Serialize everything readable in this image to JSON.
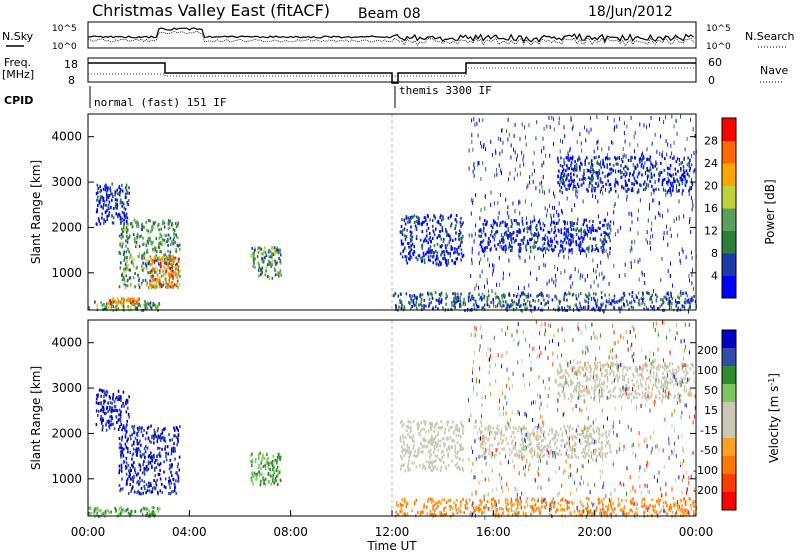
{
  "header": {
    "title": "Christmas Valley East (fitACF)",
    "beam": "Beam 08",
    "date": "18/Jun/2012"
  },
  "noise_panel": {
    "left_label": "N.Sky",
    "right_label": "N.Search",
    "ticks_left": [
      "10^5",
      "10^0"
    ],
    "ticks_right": [
      "10^5",
      "10^0"
    ]
  },
  "freq_panel": {
    "left_label_1": "Freq.",
    "left_label_2": "[MHz]",
    "right_label": "Nave",
    "ticks_left": [
      "18",
      "8"
    ],
    "ticks_right": [
      "60",
      "0"
    ]
  },
  "cpid_panel": {
    "label": "CPID",
    "mode_1": "normal (fast) 151 IF",
    "mode_2": "themis 3300 IF"
  },
  "colors": {
    "power_scale": [
      "#0000ff",
      "#1c3cae",
      "#2e7d3a",
      "#5aa05a",
      "#bfd23a",
      "#ffa500",
      "#ff6a00",
      "#ff0000"
    ],
    "velocity_scale": [
      "#0000c8",
      "#2e4ca8",
      "#2e8b2e",
      "#7cc860",
      "#c8c8b4",
      "#c8c8b4",
      "#ffa028",
      "#ff7800",
      "#ff3c00",
      "#ff0000"
    ]
  },
  "chart_data": [
    {
      "type": "heatmap",
      "name": "power",
      "ylabel": "Slant Range [km]",
      "yticks": [
        "1000",
        "2000",
        "3000",
        "4000"
      ],
      "ylim": [
        180,
        4500
      ],
      "colorbar_label": "Power [dB]",
      "colorbar_ticks": [
        "4",
        "8",
        "12",
        "16",
        "20",
        "24",
        "28"
      ],
      "xlim_hours": [
        0,
        24
      ],
      "echo_regions": [
        {
          "t": [
            0.0,
            2.8
          ],
          "r": [
            200,
            400
          ],
          "level": 3
        },
        {
          "t": [
            0.8,
            2.0
          ],
          "r": [
            350,
            480
          ],
          "level": 6
        },
        {
          "t": [
            0.3,
            1.6
          ],
          "r": [
            2100,
            3000
          ],
          "level": 1
        },
        {
          "t": [
            1.2,
            3.6
          ],
          "r": [
            700,
            2200
          ],
          "level": 3
        },
        {
          "t": [
            2.4,
            3.6
          ],
          "r": [
            700,
            1400
          ],
          "level": 6
        },
        {
          "t": [
            6.4,
            7.6
          ],
          "r": [
            900,
            1600
          ],
          "level": 3
        },
        {
          "t": [
            12.3,
            14.8
          ],
          "r": [
            1200,
            2300
          ],
          "level": 1
        },
        {
          "t": [
            15.4,
            20.6
          ],
          "r": [
            1500,
            2200
          ],
          "level": 1
        },
        {
          "t": [
            18.5,
            23.8
          ],
          "r": [
            2800,
            3600
          ],
          "level": 1
        },
        {
          "t": [
            12.0,
            24.0
          ],
          "r": [
            200,
            600
          ],
          "level": 2
        }
      ]
    },
    {
      "type": "heatmap",
      "name": "velocity",
      "ylabel": "Slant Range [km]",
      "yticks": [
        "1000",
        "2000",
        "3000",
        "4000"
      ],
      "ylim": [
        180,
        4500
      ],
      "colorbar_label": "Velocity [m s^-1]",
      "colorbar_ticks": [
        "200",
        "100",
        "50",
        "15",
        "-15",
        "-50",
        "-100",
        "-200"
      ],
      "xlabel": "Time UT",
      "xticks": [
        "00:00",
        "04:00",
        "08:00",
        "12:00",
        "16:00",
        "20:00",
        "00:00"
      ],
      "xlim_hours": [
        0,
        24
      ],
      "echo_regions": [
        {
          "t": [
            0.0,
            2.8
          ],
          "r": [
            200,
            400
          ],
          "vel": "green"
        },
        {
          "t": [
            0.3,
            1.6
          ],
          "r": [
            2100,
            3000
          ],
          "vel": "blue"
        },
        {
          "t": [
            1.2,
            3.6
          ],
          "r": [
            700,
            2200
          ],
          "vel": "blue"
        },
        {
          "t": [
            6.4,
            7.6
          ],
          "r": [
            900,
            1600
          ],
          "vel": "green"
        },
        {
          "t": [
            12.3,
            14.8
          ],
          "r": [
            1200,
            2300
          ],
          "vel": "grey"
        },
        {
          "t": [
            15.4,
            20.6
          ],
          "r": [
            1500,
            2200
          ],
          "vel": "grey"
        },
        {
          "t": [
            18.5,
            23.8
          ],
          "r": [
            2800,
            3600
          ],
          "vel": "grey"
        },
        {
          "t": [
            12.0,
            24.0
          ],
          "r": [
            200,
            600
          ],
          "vel": "orange"
        }
      ]
    }
  ]
}
